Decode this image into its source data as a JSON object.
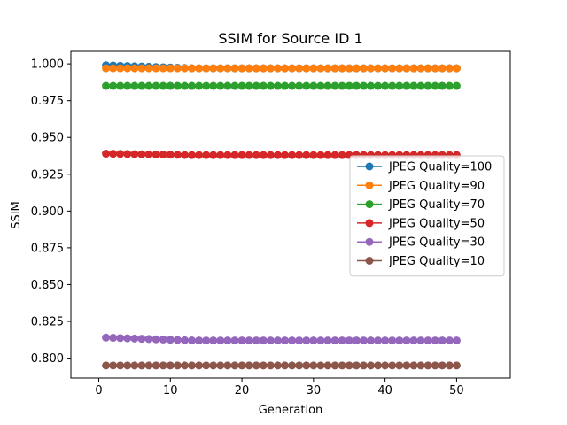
{
  "chart_data": {
    "type": "line",
    "title": "SSIM for Source ID 1",
    "xlabel": "Generation",
    "ylabel": "SSIM",
    "xlim": [
      -3.9,
      57.5
    ],
    "ylim": [
      0.7865,
      1.0085
    ],
    "xticks": [
      0,
      10,
      20,
      30,
      40,
      50
    ],
    "yticks": [
      0.8,
      0.825,
      0.85,
      0.875,
      0.9,
      0.925,
      0.95,
      0.975,
      1.0
    ],
    "ytick_labels": [
      "0.800",
      "0.825",
      "0.850",
      "0.875",
      "0.900",
      "0.925",
      "0.950",
      "0.975",
      "1.000"
    ],
    "grid": false,
    "legend_position": "center-right",
    "x_start": 1,
    "x_end": 50,
    "series": [
      {
        "name": "JPEG Quality=100",
        "color": "#1f77b4",
        "start": 0.999,
        "end": 0.997
      },
      {
        "name": "JPEG Quality=90",
        "color": "#ff7f0e",
        "start": 0.997,
        "end": 0.997
      },
      {
        "name": "JPEG Quality=70",
        "color": "#2ca02c",
        "start": 0.985,
        "end": 0.985
      },
      {
        "name": "JPEG Quality=50",
        "color": "#d62728",
        "start": 0.939,
        "end": 0.938
      },
      {
        "name": "JPEG Quality=30",
        "color": "#9467bd",
        "start": 0.814,
        "end": 0.812
      },
      {
        "name": "JPEG Quality=10",
        "color": "#8c564b",
        "start": 0.795,
        "end": 0.795
      }
    ]
  }
}
